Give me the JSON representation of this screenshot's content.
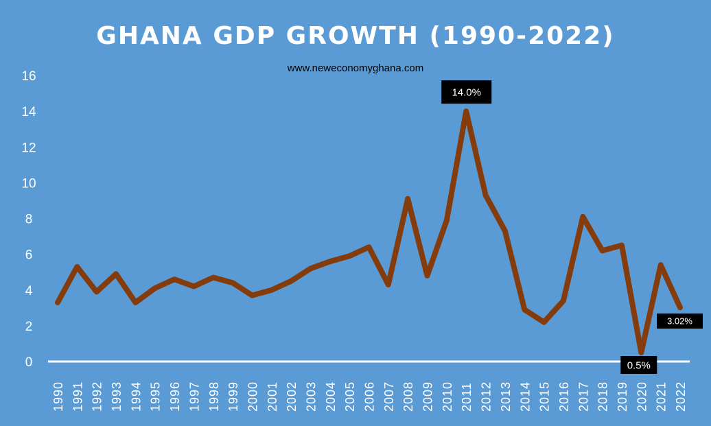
{
  "chart_data": {
    "type": "line",
    "title": "GHANA GDP GROWTH (1990-2022)",
    "subtitle": "www.neweconomyghana.com",
    "xlabel": "",
    "ylabel": "",
    "ylim": [
      0,
      16
    ],
    "yticks": [
      "0",
      "2",
      "4",
      "6",
      "8",
      "10",
      "12",
      "14",
      "16"
    ],
    "categories": [
      "1990",
      "1991",
      "1992",
      "1993",
      "1994",
      "1995",
      "1996",
      "1997",
      "1998",
      "1999",
      "2000",
      "2001",
      "2002",
      "2003",
      "2004",
      "2005",
      "2006",
      "2007",
      "2008",
      "2009",
      "2010",
      "2011",
      "2012",
      "2013",
      "2014",
      "2015",
      "2016",
      "2017",
      "2018",
      "2019",
      "2020",
      "2021",
      "2022"
    ],
    "values": [
      3.3,
      5.3,
      3.9,
      4.9,
      3.3,
      4.1,
      4.6,
      4.2,
      4.7,
      4.4,
      3.7,
      4.0,
      4.5,
      5.2,
      5.6,
      5.9,
      6.4,
      4.3,
      9.1,
      4.8,
      7.9,
      14.0,
      9.3,
      7.3,
      2.9,
      2.2,
      3.4,
      8.1,
      6.2,
      6.5,
      0.5,
      5.4,
      3.02
    ],
    "annotations": [
      {
        "category": "2011",
        "text": "14.0%"
      },
      {
        "category": "2020",
        "text": "0.5%"
      },
      {
        "category": "2022",
        "text": "3.02%"
      }
    ],
    "grid": false,
    "legend": "none",
    "colors": {
      "background": "#5b9bd5",
      "line": "#843c0c",
      "drop_lines": "#ffffff",
      "label_box": "#000000"
    }
  }
}
